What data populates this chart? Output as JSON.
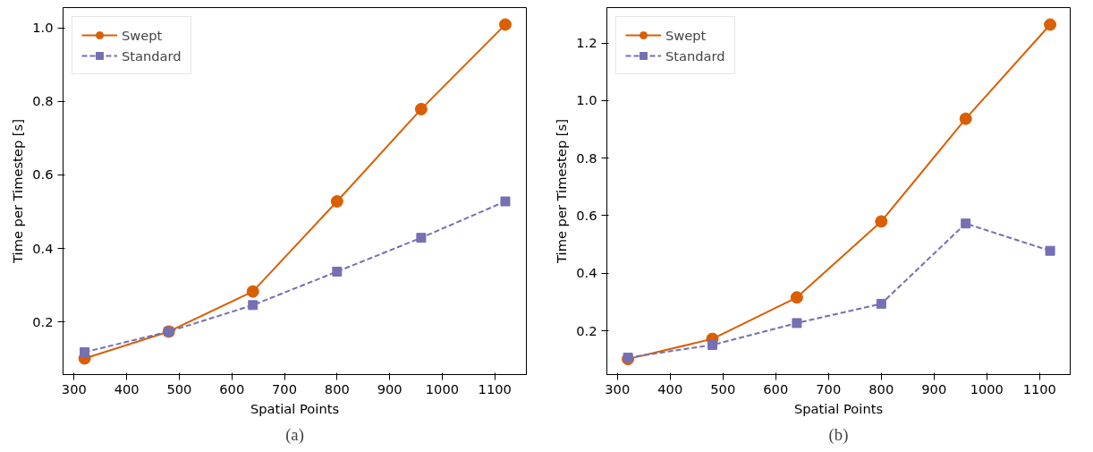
{
  "chart_data": [
    {
      "type": "line",
      "xlabel": "Spatial Points",
      "ylabel": "Time per Timestep [s]",
      "annotations": [
        "(a)"
      ],
      "x": [
        320,
        480,
        640,
        800,
        960,
        1120
      ],
      "xlim": [
        279,
        1160
      ],
      "xticks": [
        300,
        400,
        500,
        600,
        700,
        800,
        900,
        1000,
        1100
      ],
      "ylim": [
        0.057,
        1.055
      ],
      "yticks": [
        0.2,
        0.4,
        0.6,
        0.8,
        {
          "value": 1.0,
          "label": "1.0"
        }
      ],
      "grid": false,
      "legend": "top left",
      "series": [
        {
          "name": "Swept",
          "color": "#d95f02",
          "marker": "circle",
          "line_style": "solid",
          "values": [
            0.101,
            0.174,
            0.283,
            0.528,
            0.779,
            1.009
          ]
        },
        {
          "name": "Standard",
          "color": "#7570b3",
          "marker": "square",
          "line_style": "dashed",
          "values": [
            0.118,
            0.174,
            0.246,
            0.337,
            0.429,
            0.528
          ]
        }
      ]
    },
    {
      "type": "line",
      "xlabel": "Spatial Points",
      "ylabel": "Time per Timestep [s]",
      "annotations": [
        "(b)"
      ],
      "x": [
        320,
        480,
        640,
        800,
        960,
        1120
      ],
      "xlim": [
        280,
        1158
      ],
      "xticks": [
        300,
        400,
        500,
        600,
        700,
        800,
        900,
        1000,
        1100
      ],
      "ylim": [
        0.048,
        1.323
      ],
      "yticks": [
        0.2,
        0.4,
        0.6,
        0.8,
        {
          "value": 1.0,
          "label": "1.0"
        },
        1.2
      ],
      "grid": false,
      "legend": "top left",
      "series": [
        {
          "name": "Swept",
          "color": "#d95f02",
          "marker": "circle",
          "line_style": "solid",
          "values": [
            0.102,
            0.172,
            0.316,
            0.58,
            0.937,
            1.264
          ]
        },
        {
          "name": "Standard",
          "color": "#7570b3",
          "marker": "square",
          "line_style": "dashed",
          "values": [
            0.107,
            0.151,
            0.227,
            0.294,
            0.573,
            0.478
          ]
        }
      ]
    }
  ]
}
